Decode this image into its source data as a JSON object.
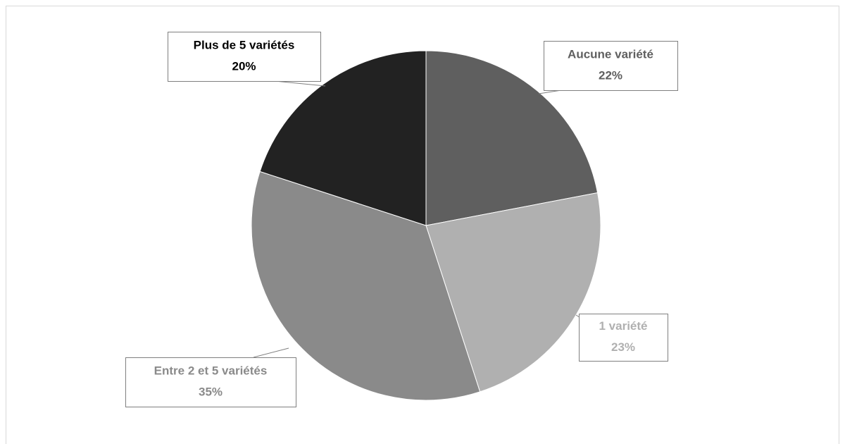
{
  "chart_data": {
    "type": "pie",
    "categories": [
      "Aucune variété",
      "1 variété",
      "Entre 2 et 5 variétés",
      "Plus de 5 variétés"
    ],
    "values": [
      22,
      23,
      35,
      20
    ],
    "value_labels": [
      "22%",
      "23%",
      "35%",
      "20%"
    ],
    "colors": [
      "#5f5f5f",
      "#b0b0b0",
      "#8a8a8a",
      "#222222"
    ]
  }
}
